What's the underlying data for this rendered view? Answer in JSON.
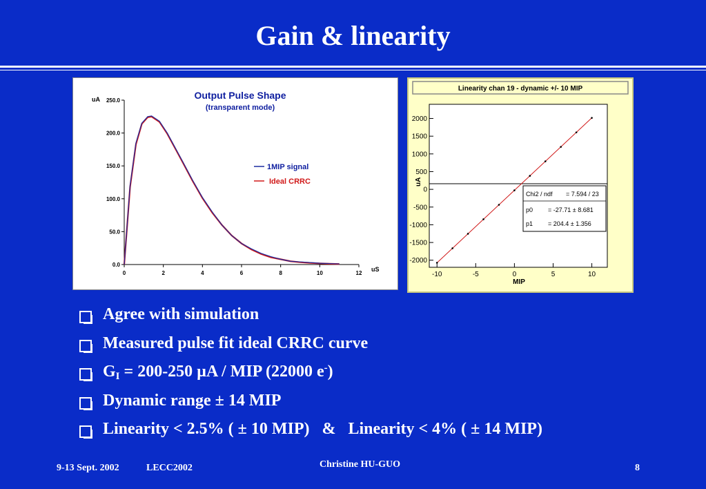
{
  "title": "Gain & linearity",
  "left_chart": {
    "title": "Output Pulse Shape",
    "subtitle": "(transparent mode)",
    "ylabel": "uA",
    "xlabel": "uS",
    "yticks": [
      "250.0",
      "200.0",
      "150.0",
      "100.0",
      "50.0",
      "0.0"
    ],
    "xticks": [
      "0",
      "2",
      "4",
      "6",
      "8",
      "10",
      "12"
    ],
    "legend": [
      "1MIP signal",
      "Ideal CRRC"
    ],
    "colors": {
      "signal": "#1c2ca0",
      "ideal": "#d01818"
    }
  },
  "chart_data": [
    {
      "type": "line",
      "title": "Output Pulse Shape",
      "subtitle": "(transparent mode)",
      "xlabel": "uS",
      "ylabel": "uA",
      "xlim": [
        0,
        12
      ],
      "ylim": [
        0,
        250
      ],
      "series": [
        {
          "name": "1MIP signal",
          "x": [
            0,
            0.3,
            0.6,
            0.9,
            1.2,
            1.4,
            1.8,
            2.2,
            2.6,
            3.0,
            3.5,
            4,
            4.5,
            5,
            5.5,
            6,
            6.5,
            7,
            7.5,
            8,
            8.5,
            9,
            9.5,
            10,
            10.5,
            11
          ],
          "y": [
            0,
            120,
            185,
            215,
            225,
            226,
            218,
            200,
            178,
            156,
            128,
            102,
            80,
            60,
            44,
            32,
            24,
            17,
            12,
            8,
            5,
            4,
            3,
            2,
            1.5,
            1
          ]
        },
        {
          "name": "Ideal CRRC",
          "x": [
            0,
            0.3,
            0.6,
            0.9,
            1.2,
            1.4,
            1.8,
            2.2,
            2.6,
            3.0,
            3.5,
            4,
            4.5,
            5,
            5.5,
            6,
            6.5,
            7,
            7.5,
            8,
            8.5,
            9,
            9.5,
            10,
            10.5,
            11
          ],
          "y": [
            0,
            118,
            183,
            214,
            224,
            225,
            217,
            199,
            177,
            155,
            127,
            101,
            79,
            60,
            44,
            32,
            23,
            16,
            11,
            8,
            5,
            3.5,
            2.5,
            1.8,
            1.2,
            0.8
          ]
        }
      ]
    },
    {
      "type": "scatter",
      "title": "Linearity chan 19 - dynamic +/- 10 MIP",
      "xlabel": "MIP",
      "ylabel": "uA",
      "xlim": [
        -11,
        12
      ],
      "ylim": [
        -2200,
        2400
      ],
      "series": [
        {
          "name": "",
          "x": [
            -10,
            -8,
            -6,
            -4,
            -2,
            0,
            2,
            4,
            6,
            8,
            10
          ],
          "y": [
            -2072,
            -1663,
            -1254,
            -845,
            -436,
            -28,
            381,
            790,
            1199,
            1608,
            2017
          ]
        }
      ]
    }
  ],
  "right_chart": {
    "title": "Linearity chan 19 - dynamic +/- 10 MIP",
    "ylabel": "uA",
    "xlabel": "MIP",
    "yticks": [
      "2000",
      "1500",
      "1000",
      "500",
      "0",
      "-500",
      "-1000",
      "-1500",
      "-2000"
    ],
    "xticks": [
      "-10",
      "-5",
      "0",
      "5",
      "10"
    ],
    "stats": [
      {
        "label": "Chi2 / ndf",
        "value": "= 7.594 / 23"
      },
      {
        "label": "p0",
        "value": "= -27.71 ± 8.681"
      },
      {
        "label": "p1",
        "value": "= 204.4 ± 1.356"
      }
    ]
  },
  "bullets": {
    "b1": "Agree with simulation",
    "b2": "Measured pulse fit ideal CRRC curve",
    "b3_pre": "G",
    "b3_sub": "I",
    "b3_mid": " = 200-250 µA / MIP (22000 e",
    "b3_sup": "-",
    "b3_end": ")",
    "b4": "Dynamic range ± 14 MIP",
    "b5a": "Linearity < 2.5% ( ± 10 MIP)",
    "b5b": "&",
    "b5c": "Linearity < 4% ( ± 14 MIP)"
  },
  "footer": {
    "date": "9-13 Sept. 2002",
    "event": "LECC2002",
    "author": "Christine HU-GUO",
    "page": "8"
  }
}
